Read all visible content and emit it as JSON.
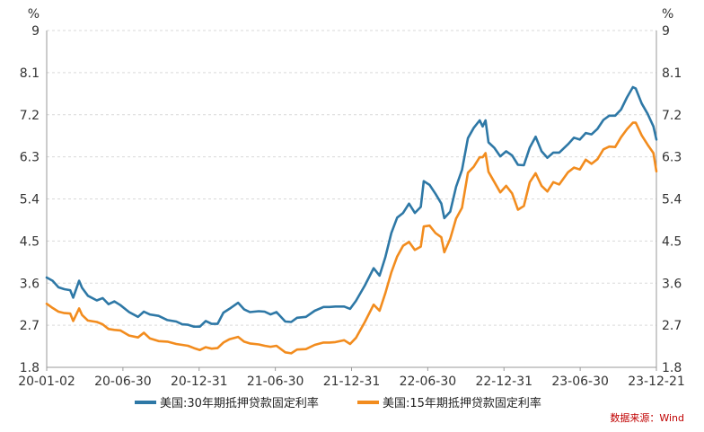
{
  "colors": {
    "series1": "#2e78a6",
    "series2": "#f28c1e",
    "grid": "#d9d9d9",
    "source": "#c00000"
  },
  "source_note": "数据来源：Wind",
  "chart_data": {
    "type": "line",
    "y_unit_left": "%",
    "y_unit_right": "%",
    "ylim": [
      1.8,
      9
    ],
    "yticks": [
      "1.8",
      "2.7",
      "3.6",
      "4.5",
      "5.4",
      "6.3",
      "7.2",
      "8.1",
      "9"
    ],
    "xlim": [
      "2020-01-02",
      "2023-12-21"
    ],
    "xticks": [
      "20-01-02",
      "20-06-30",
      "20-12-31",
      "21-06-30",
      "21-12-31",
      "22-06-30",
      "22-12-31",
      "23-06-30",
      "23-12-21"
    ],
    "grid": "horizontal dashed",
    "legend_position": "bottom-center",
    "series": [
      {
        "name": "美国:30年期抵押贷款固定利率",
        "color": "#2e78a6",
        "points": [
          [
            "2020-01-02",
            3.72
          ],
          [
            "2020-01-16",
            3.65
          ],
          [
            "2020-01-30",
            3.51
          ],
          [
            "2020-02-13",
            3.47
          ],
          [
            "2020-02-27",
            3.45
          ],
          [
            "2020-03-05",
            3.29
          ],
          [
            "2020-03-19",
            3.65
          ],
          [
            "2020-03-26",
            3.5
          ],
          [
            "2020-04-09",
            3.33
          ],
          [
            "2020-04-30",
            3.23
          ],
          [
            "2020-05-14",
            3.28
          ],
          [
            "2020-05-28",
            3.15
          ],
          [
            "2020-06-11",
            3.21
          ],
          [
            "2020-06-25",
            3.13
          ],
          [
            "2020-07-16",
            2.98
          ],
          [
            "2020-08-06",
            2.88
          ],
          [
            "2020-08-20",
            2.99
          ],
          [
            "2020-09-03",
            2.93
          ],
          [
            "2020-09-24",
            2.9
          ],
          [
            "2020-10-15",
            2.81
          ],
          [
            "2020-11-05",
            2.78
          ],
          [
            "2020-11-19",
            2.72
          ],
          [
            "2020-12-03",
            2.71
          ],
          [
            "2020-12-17",
            2.67
          ],
          [
            "2020-12-31",
            2.67
          ],
          [
            "2021-01-14",
            2.79
          ],
          [
            "2021-01-28",
            2.73
          ],
          [
            "2021-02-11",
            2.73
          ],
          [
            "2021-02-25",
            2.97
          ],
          [
            "2021-03-11",
            3.05
          ],
          [
            "2021-04-01",
            3.18
          ],
          [
            "2021-04-15",
            3.04
          ],
          [
            "2021-04-29",
            2.98
          ],
          [
            "2021-05-20",
            3.0
          ],
          [
            "2021-06-03",
            2.99
          ],
          [
            "2021-06-17",
            2.93
          ],
          [
            "2021-07-01",
            2.98
          ],
          [
            "2021-07-22",
            2.78
          ],
          [
            "2021-08-05",
            2.77
          ],
          [
            "2021-08-19",
            2.86
          ],
          [
            "2021-09-09",
            2.88
          ],
          [
            "2021-09-30",
            3.01
          ],
          [
            "2021-10-21",
            3.09
          ],
          [
            "2021-11-04",
            3.09
          ],
          [
            "2021-11-18",
            3.1
          ],
          [
            "2021-12-09",
            3.1
          ],
          [
            "2021-12-23",
            3.05
          ],
          [
            "2022-01-06",
            3.22
          ],
          [
            "2022-01-27",
            3.55
          ],
          [
            "2022-02-17",
            3.92
          ],
          [
            "2022-03-03",
            3.76
          ],
          [
            "2022-03-17",
            4.16
          ],
          [
            "2022-03-31",
            4.67
          ],
          [
            "2022-04-14",
            5.0
          ],
          [
            "2022-04-28",
            5.1
          ],
          [
            "2022-05-12",
            5.3
          ],
          [
            "2022-05-26",
            5.1
          ],
          [
            "2022-06-09",
            5.23
          ],
          [
            "2022-06-16",
            5.78
          ],
          [
            "2022-06-30",
            5.7
          ],
          [
            "2022-07-14",
            5.51
          ],
          [
            "2022-07-28",
            5.3
          ],
          [
            "2022-08-04",
            4.99
          ],
          [
            "2022-08-18",
            5.13
          ],
          [
            "2022-09-01",
            5.66
          ],
          [
            "2022-09-15",
            6.02
          ],
          [
            "2022-09-29",
            6.7
          ],
          [
            "2022-10-13",
            6.92
          ],
          [
            "2022-10-27",
            7.08
          ],
          [
            "2022-11-03",
            6.95
          ],
          [
            "2022-11-10",
            7.08
          ],
          [
            "2022-11-17",
            6.61
          ],
          [
            "2022-12-01",
            6.49
          ],
          [
            "2022-12-15",
            6.31
          ],
          [
            "2022-12-29",
            6.42
          ],
          [
            "2023-01-12",
            6.33
          ],
          [
            "2023-01-26",
            6.13
          ],
          [
            "2023-02-09",
            6.12
          ],
          [
            "2023-02-23",
            6.5
          ],
          [
            "2023-03-09",
            6.73
          ],
          [
            "2023-03-23",
            6.42
          ],
          [
            "2023-04-06",
            6.28
          ],
          [
            "2023-04-20",
            6.39
          ],
          [
            "2023-05-04",
            6.39
          ],
          [
            "2023-05-25",
            6.57
          ],
          [
            "2023-06-08",
            6.71
          ],
          [
            "2023-06-22",
            6.67
          ],
          [
            "2023-07-06",
            6.81
          ],
          [
            "2023-07-20",
            6.78
          ],
          [
            "2023-08-03",
            6.9
          ],
          [
            "2023-08-17",
            7.09
          ],
          [
            "2023-08-31",
            7.18
          ],
          [
            "2023-09-14",
            7.18
          ],
          [
            "2023-09-28",
            7.31
          ],
          [
            "2023-10-12",
            7.57
          ],
          [
            "2023-10-26",
            7.79
          ],
          [
            "2023-11-02",
            7.76
          ],
          [
            "2023-11-16",
            7.44
          ],
          [
            "2023-11-30",
            7.22
          ],
          [
            "2023-12-14",
            6.95
          ],
          [
            "2023-12-21",
            6.67
          ]
        ]
      },
      {
        "name": "美国:15年期抵押贷款固定利率",
        "color": "#f28c1e",
        "points": [
          [
            "2020-01-02",
            3.16
          ],
          [
            "2020-01-16",
            3.07
          ],
          [
            "2020-01-30",
            2.99
          ],
          [
            "2020-02-13",
            2.96
          ],
          [
            "2020-02-27",
            2.95
          ],
          [
            "2020-03-05",
            2.79
          ],
          [
            "2020-03-19",
            3.06
          ],
          [
            "2020-03-26",
            2.92
          ],
          [
            "2020-04-09",
            2.8
          ],
          [
            "2020-04-30",
            2.77
          ],
          [
            "2020-05-14",
            2.72
          ],
          [
            "2020-05-28",
            2.62
          ],
          [
            "2020-06-11",
            2.6
          ],
          [
            "2020-06-25",
            2.59
          ],
          [
            "2020-07-16",
            2.48
          ],
          [
            "2020-08-06",
            2.44
          ],
          [
            "2020-08-20",
            2.54
          ],
          [
            "2020-09-03",
            2.42
          ],
          [
            "2020-09-24",
            2.36
          ],
          [
            "2020-10-15",
            2.35
          ],
          [
            "2020-11-05",
            2.3
          ],
          [
            "2020-11-19",
            2.28
          ],
          [
            "2020-12-03",
            2.26
          ],
          [
            "2020-12-17",
            2.21
          ],
          [
            "2020-12-31",
            2.17
          ],
          [
            "2021-01-14",
            2.23
          ],
          [
            "2021-01-28",
            2.2
          ],
          [
            "2021-02-11",
            2.21
          ],
          [
            "2021-02-25",
            2.33
          ],
          [
            "2021-03-11",
            2.4
          ],
          [
            "2021-04-01",
            2.45
          ],
          [
            "2021-04-15",
            2.35
          ],
          [
            "2021-04-29",
            2.31
          ],
          [
            "2021-05-20",
            2.29
          ],
          [
            "2021-06-03",
            2.26
          ],
          [
            "2021-06-17",
            2.24
          ],
          [
            "2021-07-01",
            2.26
          ],
          [
            "2021-07-22",
            2.12
          ],
          [
            "2021-08-05",
            2.1
          ],
          [
            "2021-08-19",
            2.18
          ],
          [
            "2021-09-09",
            2.19
          ],
          [
            "2021-09-30",
            2.28
          ],
          [
            "2021-10-21",
            2.33
          ],
          [
            "2021-11-04",
            2.33
          ],
          [
            "2021-11-18",
            2.34
          ],
          [
            "2021-12-09",
            2.38
          ],
          [
            "2021-12-23",
            2.3
          ],
          [
            "2022-01-06",
            2.43
          ],
          [
            "2022-01-27",
            2.77
          ],
          [
            "2022-02-17",
            3.14
          ],
          [
            "2022-03-03",
            3.01
          ],
          [
            "2022-03-17",
            3.39
          ],
          [
            "2022-03-31",
            3.83
          ],
          [
            "2022-04-14",
            4.17
          ],
          [
            "2022-04-28",
            4.4
          ],
          [
            "2022-05-12",
            4.48
          ],
          [
            "2022-05-26",
            4.31
          ],
          [
            "2022-06-09",
            4.38
          ],
          [
            "2022-06-16",
            4.81
          ],
          [
            "2022-06-30",
            4.83
          ],
          [
            "2022-07-14",
            4.67
          ],
          [
            "2022-07-28",
            4.58
          ],
          [
            "2022-08-04",
            4.26
          ],
          [
            "2022-08-18",
            4.55
          ],
          [
            "2022-09-01",
            4.98
          ],
          [
            "2022-09-15",
            5.21
          ],
          [
            "2022-09-29",
            5.96
          ],
          [
            "2022-10-13",
            6.09
          ],
          [
            "2022-10-27",
            6.29
          ],
          [
            "2022-11-03",
            6.29
          ],
          [
            "2022-11-10",
            6.38
          ],
          [
            "2022-11-17",
            5.98
          ],
          [
            "2022-12-01",
            5.76
          ],
          [
            "2022-12-15",
            5.54
          ],
          [
            "2022-12-29",
            5.68
          ],
          [
            "2023-01-12",
            5.52
          ],
          [
            "2023-01-26",
            5.17
          ],
          [
            "2023-02-09",
            5.25
          ],
          [
            "2023-02-23",
            5.76
          ],
          [
            "2023-03-09",
            5.95
          ],
          [
            "2023-03-23",
            5.68
          ],
          [
            "2023-04-06",
            5.56
          ],
          [
            "2023-04-20",
            5.76
          ],
          [
            "2023-05-04",
            5.71
          ],
          [
            "2023-05-25",
            5.97
          ],
          [
            "2023-06-08",
            6.07
          ],
          [
            "2023-06-22",
            6.03
          ],
          [
            "2023-07-06",
            6.24
          ],
          [
            "2023-07-20",
            6.15
          ],
          [
            "2023-08-03",
            6.25
          ],
          [
            "2023-08-17",
            6.46
          ],
          [
            "2023-08-31",
            6.52
          ],
          [
            "2023-09-14",
            6.51
          ],
          [
            "2023-09-28",
            6.72
          ],
          [
            "2023-10-12",
            6.89
          ],
          [
            "2023-10-26",
            7.03
          ],
          [
            "2023-11-02",
            7.03
          ],
          [
            "2023-11-16",
            6.76
          ],
          [
            "2023-11-30",
            6.56
          ],
          [
            "2023-12-14",
            6.38
          ],
          [
            "2023-12-21",
            5.99
          ]
        ]
      }
    ]
  }
}
